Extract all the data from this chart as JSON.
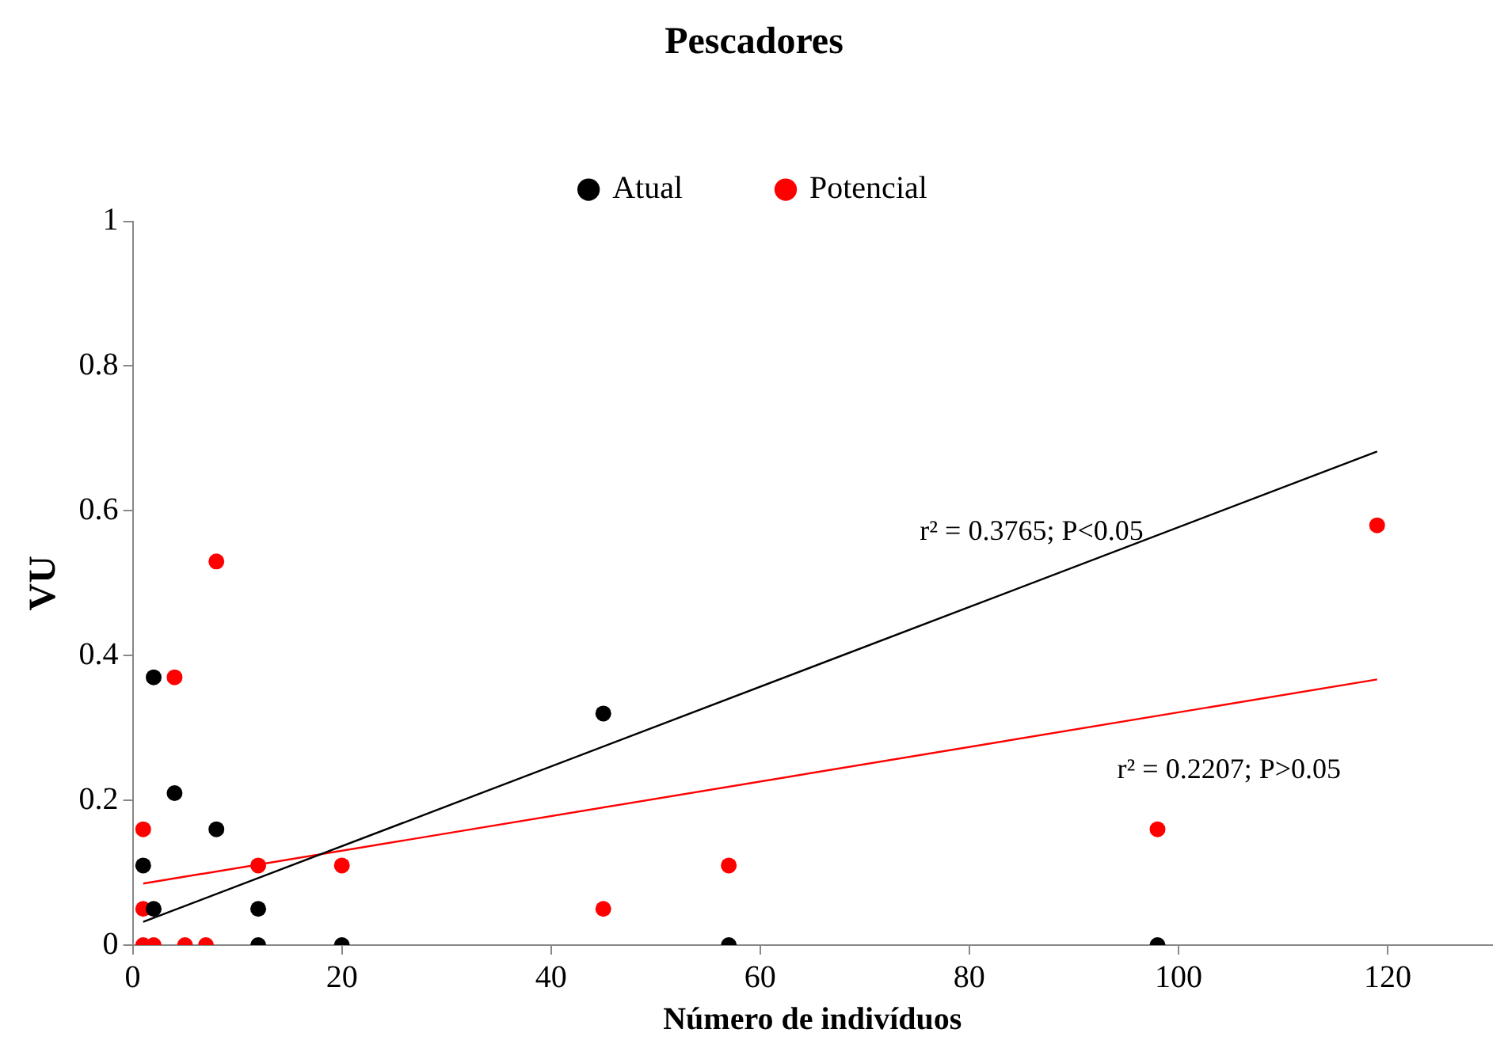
{
  "chart_data": {
    "type": "scatter",
    "title": "Pescadores",
    "xlabel": "Número de indivíduos",
    "ylabel": "VU",
    "xlim": [
      0,
      130
    ],
    "xticks": [
      0,
      20,
      40,
      60,
      80,
      100,
      120
    ],
    "ylim": [
      0,
      1
    ],
    "yticks": [
      0,
      0.2,
      0.4,
      0.6,
      0.8,
      1
    ],
    "grid": false,
    "legend": "top",
    "series": [
      {
        "name": "Atual",
        "color": "#000000",
        "marker": "circle",
        "x": [
          1,
          2,
          2,
          4,
          8,
          12,
          12,
          20,
          45,
          57,
          98
        ],
        "values": [
          0.11,
          0.37,
          0.05,
          0.21,
          0.16,
          0.05,
          0,
          0,
          0.32,
          0,
          0
        ]
      },
      {
        "name": "Potencial",
        "color": "#ff0000",
        "marker": "circle",
        "x": [
          1,
          1,
          1,
          2,
          4,
          5,
          7,
          8,
          12,
          20,
          45,
          57,
          98,
          119
        ],
        "values": [
          0.16,
          0.05,
          0,
          0,
          0.37,
          0,
          0,
          0.53,
          0.11,
          0.11,
          0.05,
          0.11,
          0.16,
          0.58
        ]
      },
      {
        "type": "line",
        "marker": "none",
        "color": "#000000",
        "x": [
          1,
          119
        ],
        "values": [
          0.032,
          0.682
        ]
      },
      {
        "type": "line",
        "marker": "none",
        "color": "#ff0000",
        "x": [
          1,
          119
        ],
        "values": [
          0.085,
          0.367
        ]
      }
    ],
    "annotations": [
      "r² = 0.3765; P<0.05",
      "r² = 0.2207; P>0.05"
    ]
  }
}
